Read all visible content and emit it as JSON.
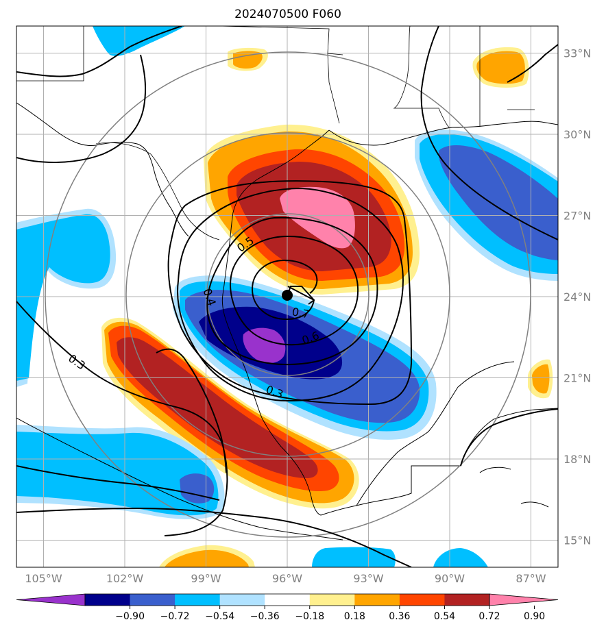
{
  "title": "2024070500 F060",
  "chart_data": {
    "type": "heatmap",
    "title": "2024070500 F060",
    "x_ticks": [
      -105,
      -102,
      -99,
      -96,
      -93,
      -90,
      -87
    ],
    "x_tick_labels": [
      "105°W",
      "102°W",
      "99°W",
      "96°W",
      "93°W",
      "90°W",
      "87°W"
    ],
    "y_ticks": [
      15,
      18,
      21,
      24,
      27,
      30,
      33
    ],
    "y_tick_labels": [
      "15°N",
      "18°N",
      "21°N",
      "24°N",
      "27°N",
      "30°N",
      "33°N"
    ],
    "lon_range": [
      -106,
      -86
    ],
    "lat_range": [
      14,
      34
    ],
    "grid": true,
    "center": {
      "lon": -95.7,
      "lat": 24.1
    },
    "colorbar": {
      "orientation": "horizontal",
      "position": "bottom",
      "extend": "both",
      "levels": [
        -0.9,
        -0.72,
        -0.54,
        -0.36,
        -0.18,
        0.18,
        0.36,
        0.54,
        0.72,
        0.9
      ],
      "tick_labels": [
        "−0.90",
        "−0.72",
        "−0.54",
        "−0.36",
        "−0.18",
        "0.18",
        "0.36",
        "0.54",
        "0.72",
        "0.90"
      ],
      "colors": [
        "#9932cc",
        "#00008b",
        "#3a5fcd",
        "#00bfff",
        "#b0e2ff",
        "#ffffff",
        "#fff08f",
        "#ffa500",
        "#ff4500",
        "#b22222",
        "#ff82ab"
      ]
    },
    "shaded_features": [
      {
        "sign": "positive",
        "peak": 0.9,
        "center": {
          "lon": -94.5,
          "lat": 27.2
        }
      },
      {
        "sign": "negative",
        "peak": -0.9,
        "center": {
          "lon": -96.4,
          "lat": 22.3
        }
      },
      {
        "sign": "positive",
        "peak": 0.9,
        "center": {
          "lon": -99.3,
          "lat": 19.6
        }
      },
      {
        "sign": "negative",
        "peak": -0.72,
        "center": {
          "lon": -88.8,
          "lat": 27.5
        }
      }
    ],
    "contour_labels": [
      "0.5",
      "0.4",
      "0.7",
      "0.6",
      "0.3",
      "0.3"
    ],
    "contour_levels": [
      0.3,
      0.4,
      0.5,
      0.6,
      0.7
    ]
  }
}
